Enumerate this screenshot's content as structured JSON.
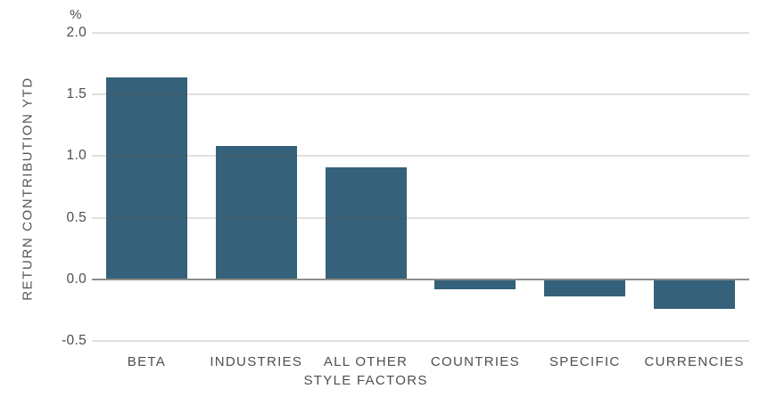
{
  "chart_data": {
    "type": "bar",
    "title": "",
    "unit_label": "%",
    "ylabel": "RETURN CONTRIBUTION YTD",
    "xlabel": "",
    "categories": [
      "BETA",
      "INDUSTRIES",
      "ALL OTHER\nSTYLE FACTORS",
      "COUNTRIES",
      "SPECIFIC",
      "CURRENCIES"
    ],
    "values": [
      1.64,
      1.08,
      0.91,
      -0.08,
      -0.14,
      -0.24
    ],
    "ylim": [
      -0.5,
      2.0
    ],
    "yticks": [
      2.0,
      1.5,
      1.0,
      0.5,
      0.0,
      -0.5
    ],
    "grid": true,
    "legend": false,
    "colors": {
      "bar": "#35617A",
      "gridline": "#dfdcd4",
      "zero_line": "#8d8d88",
      "text": "#4c4e52",
      "background": "#ffffff"
    }
  }
}
